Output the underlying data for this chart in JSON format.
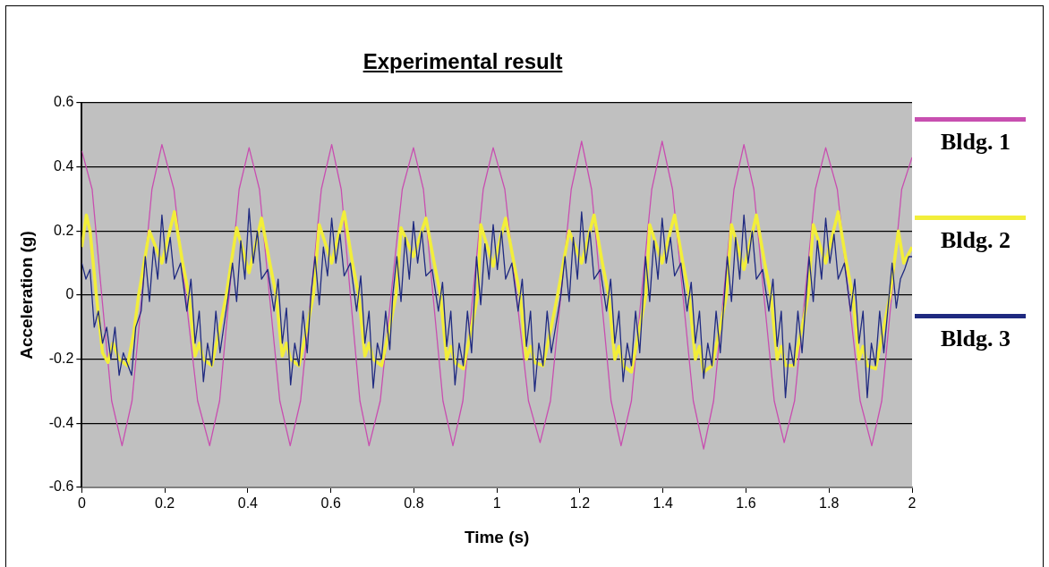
{
  "chart_data": {
    "type": "line",
    "title": "Experimental result",
    "xlabel": "Time (s)",
    "ylabel": "Acceleration (g)",
    "xlim": [
      0,
      2
    ],
    "xticks": [
      0,
      0.2,
      0.4,
      0.6,
      0.8,
      1,
      1.2,
      1.4,
      1.6,
      1.8,
      2
    ],
    "ylim": [
      -0.6,
      0.6
    ],
    "yticks": [
      -0.6,
      -0.4,
      -0.2,
      0,
      0.2,
      0.4,
      0.6
    ],
    "grid": "y",
    "legend": "right",
    "marker": "none",
    "series": [
      {
        "name": "Bldg. 1",
        "color": "#c84fb0",
        "x": [
          0,
          0.025,
          0.048,
          0.072,
          0.097,
          0.121,
          0.145,
          0.169,
          0.193,
          0.222,
          0.25,
          0.279,
          0.308,
          0.332,
          0.355,
          0.379,
          0.403,
          0.428,
          0.452,
          0.477,
          0.502,
          0.527,
          0.552,
          0.577,
          0.602,
          0.625,
          0.647,
          0.67,
          0.692,
          0.719,
          0.745,
          0.772,
          0.799,
          0.823,
          0.846,
          0.87,
          0.894,
          0.918,
          0.942,
          0.967,
          0.991,
          1.019,
          1.047,
          1.076,
          1.104,
          1.129,
          1.154,
          1.179,
          1.204,
          1.228,
          1.251,
          1.275,
          1.299,
          1.324,
          1.348,
          1.373,
          1.398,
          1.423,
          1.448,
          1.473,
          1.498,
          1.522,
          1.546,
          1.571,
          1.595,
          1.619,
          1.643,
          1.668,
          1.692,
          1.717,
          1.742,
          1.767,
          1.792,
          1.82,
          1.847,
          1.875,
          1.903,
          1.927,
          1.951,
          1.975,
          2
        ],
        "values": [
          0.45,
          0.33,
          0,
          -0.33,
          -0.47,
          -0.33,
          0,
          0.33,
          0.47,
          0.33,
          0,
          -0.33,
          -0.47,
          -0.33,
          0,
          0.33,
          0.46,
          0.33,
          0,
          -0.33,
          -0.47,
          -0.33,
          0,
          0.33,
          0.47,
          0.33,
          0,
          -0.33,
          -0.47,
          -0.33,
          0,
          0.33,
          0.46,
          0.33,
          0,
          -0.33,
          -0.47,
          -0.33,
          0,
          0.33,
          0.46,
          0.33,
          0,
          -0.33,
          -0.46,
          -0.33,
          0,
          0.33,
          0.48,
          0.33,
          0,
          -0.33,
          -0.47,
          -0.33,
          0,
          0.33,
          0.48,
          0.33,
          0,
          -0.33,
          -0.48,
          -0.33,
          0,
          0.33,
          0.47,
          0.33,
          0,
          -0.33,
          -0.46,
          -0.33,
          0,
          0.33,
          0.46,
          0.33,
          0,
          -0.33,
          -0.47,
          -0.33,
          0,
          0.33,
          0.43
        ]
      },
      {
        "name": "Bldg. 2",
        "color": "#f2ee3a",
        "x": [
          0,
          0.011,
          0.02,
          0.035,
          0.05,
          0.063,
          0.075,
          0.09,
          0.11,
          0.125,
          0.137,
          0.163,
          0.193,
          0.223,
          0.243,
          0.258,
          0.273,
          0.283,
          0.293,
          0.313,
          0.333,
          0.348,
          0.373,
          0.403,
          0.433,
          0.453,
          0.468,
          0.483,
          0.493,
          0.503,
          0.523,
          0.543,
          0.558,
          0.572,
          0.602,
          0.632,
          0.652,
          0.667,
          0.682,
          0.692,
          0.702,
          0.722,
          0.742,
          0.757,
          0.769,
          0.799,
          0.829,
          0.849,
          0.864,
          0.879,
          0.889,
          0.899,
          0.919,
          0.939,
          0.954,
          0.961,
          0.991,
          1.021,
          1.041,
          1.056,
          1.071,
          1.081,
          1.091,
          1.111,
          1.131,
          1.146,
          1.174,
          1.204,
          1.234,
          1.254,
          1.269,
          1.284,
          1.294,
          1.304,
          1.324,
          1.344,
          1.359,
          1.368,
          1.398,
          1.428,
          1.448,
          1.463,
          1.478,
          1.488,
          1.498,
          1.518,
          1.538,
          1.553,
          1.565,
          1.595,
          1.625,
          1.645,
          1.66,
          1.675,
          1.685,
          1.695,
          1.715,
          1.735,
          1.75,
          1.762,
          1.792,
          1.822,
          1.842,
          1.857,
          1.872,
          1.882,
          1.892,
          1.912,
          1.932,
          1.947,
          1.967,
          1.98,
          2
        ],
        "values": [
          0.15,
          0.25,
          0.2,
          0,
          -0.18,
          -0.21,
          -0.15,
          -0.2,
          -0.22,
          -0.12,
          0,
          0.2,
          0.1,
          0.26,
          0.1,
          0,
          -0.19,
          -0.15,
          -0.2,
          -0.22,
          -0.1,
          0,
          0.21,
          0.07,
          0.24,
          0.1,
          0,
          -0.19,
          -0.15,
          -0.2,
          -0.22,
          -0.1,
          0,
          0.22,
          0.1,
          0.26,
          0.1,
          0,
          -0.19,
          -0.15,
          -0.2,
          -0.22,
          -0.1,
          0,
          0.21,
          0.12,
          0.24,
          0.1,
          0,
          -0.2,
          -0.16,
          -0.21,
          -0.23,
          -0.1,
          0,
          0.22,
          0.09,
          0.24,
          0.1,
          0,
          -0.2,
          -0.16,
          -0.21,
          -0.22,
          -0.1,
          0,
          0.2,
          0.1,
          0.25,
          0.1,
          0,
          -0.2,
          -0.16,
          -0.22,
          -0.24,
          -0.1,
          0,
          0.22,
          0.1,
          0.25,
          0.1,
          0,
          -0.2,
          -0.16,
          -0.24,
          -0.22,
          -0.1,
          0,
          0.22,
          0.08,
          0.25,
          0.1,
          0,
          -0.2,
          -0.16,
          -0.22,
          -0.22,
          -0.1,
          0,
          0.22,
          0.1,
          0.26,
          0.1,
          0,
          -0.2,
          -0.16,
          -0.22,
          -0.23,
          -0.1,
          0,
          0.2,
          0.1,
          0.15
        ]
      },
      {
        "name": "Bldg. 3",
        "color": "#1f2a80",
        "x": [
          0,
          0.01,
          0.02,
          0.03,
          0.04,
          0.05,
          0.06,
          0.07,
          0.08,
          0.09,
          0.1,
          0.12,
          0.13,
          0.143,
          0.153,
          0.163,
          0.173,
          0.183,
          0.193,
          0.203,
          0.213,
          0.223,
          0.238,
          0.253,
          0.263,
          0.273,
          0.283,
          0.293,
          0.303,
          0.313,
          0.323,
          0.333,
          0.353,
          0.363,
          0.373,
          0.383,
          0.393,
          0.403,
          0.413,
          0.423,
          0.433,
          0.448,
          0.463,
          0.473,
          0.483,
          0.493,
          0.503,
          0.513,
          0.523,
          0.533,
          0.543,
          0.552,
          0.562,
          0.572,
          0.582,
          0.592,
          0.602,
          0.612,
          0.622,
          0.632,
          0.647,
          0.662,
          0.672,
          0.682,
          0.692,
          0.702,
          0.712,
          0.722,
          0.732,
          0.742,
          0.749,
          0.759,
          0.769,
          0.779,
          0.789,
          0.799,
          0.809,
          0.819,
          0.829,
          0.844,
          0.859,
          0.869,
          0.879,
          0.889,
          0.899,
          0.909,
          0.919,
          0.929,
          0.939,
          0.951,
          0.961,
          0.971,
          0.981,
          0.991,
          1.001,
          1.011,
          1.021,
          1.036,
          1.051,
          1.061,
          1.071,
          1.081,
          1.091,
          1.101,
          1.111,
          1.121,
          1.131,
          1.154,
          1.164,
          1.174,
          1.184,
          1.194,
          1.204,
          1.214,
          1.224,
          1.234,
          1.249,
          1.264,
          1.274,
          1.284,
          1.294,
          1.304,
          1.314,
          1.324,
          1.334,
          1.344,
          1.358,
          1.368,
          1.378,
          1.388,
          1.398,
          1.408,
          1.418,
          1.428,
          1.443,
          1.458,
          1.468,
          1.478,
          1.488,
          1.498,
          1.508,
          1.518,
          1.528,
          1.538,
          1.555,
          1.565,
          1.575,
          1.585,
          1.595,
          1.605,
          1.615,
          1.625,
          1.64,
          1.655,
          1.665,
          1.675,
          1.685,
          1.695,
          1.705,
          1.715,
          1.725,
          1.735,
          1.752,
          1.762,
          1.772,
          1.782,
          1.792,
          1.802,
          1.812,
          1.822,
          1.837,
          1.852,
          1.862,
          1.872,
          1.882,
          1.892,
          1.902,
          1.912,
          1.922,
          1.932,
          1.952,
          1.962,
          1.972,
          1.982,
          1.992,
          2
        ],
        "values": [
          0.1,
          0.05,
          0.08,
          -0.1,
          -0.05,
          -0.15,
          -0.1,
          -0.2,
          -0.1,
          -0.25,
          -0.18,
          -0.25,
          -0.1,
          -0.05,
          0.12,
          -0.02,
          0.15,
          0.05,
          0.25,
          0.1,
          0.18,
          0.05,
          0.1,
          -0.05,
          0.05,
          -0.15,
          -0.05,
          -0.27,
          -0.15,
          -0.22,
          -0.05,
          -0.18,
          0,
          0.1,
          -0.02,
          0.17,
          0.05,
          0.27,
          0.1,
          0.2,
          0.05,
          0.08,
          -0.05,
          0.05,
          -0.15,
          -0.04,
          -0.28,
          -0.15,
          -0.22,
          -0.05,
          -0.18,
          0,
          0.12,
          -0.03,
          0.15,
          0.06,
          0.24,
          0.1,
          0.19,
          0.06,
          0.1,
          -0.05,
          0.06,
          -0.15,
          -0.05,
          -0.29,
          -0.15,
          -0.2,
          -0.05,
          -0.17,
          0,
          0.12,
          -0.02,
          0.18,
          0.05,
          0.23,
          0.1,
          0.2,
          0.06,
          0.08,
          -0.05,
          0.04,
          -0.16,
          -0.05,
          -0.28,
          -0.15,
          -0.22,
          -0.05,
          -0.18,
          0.12,
          -0.03,
          0.16,
          0.05,
          0.22,
          0.08,
          0.2,
          0.05,
          0.1,
          -0.05,
          0.05,
          -0.16,
          -0.05,
          -0.3,
          -0.15,
          -0.22,
          -0.05,
          -0.18,
          0,
          0.12,
          -0.02,
          0.18,
          0.05,
          0.26,
          0.1,
          0.2,
          0.05,
          0.08,
          -0.05,
          0.05,
          -0.15,
          -0.05,
          -0.27,
          -0.15,
          -0.22,
          -0.05,
          -0.18,
          0.12,
          -0.02,
          0.17,
          0.05,
          0.24,
          0.1,
          0.18,
          0.06,
          0.1,
          -0.05,
          0.04,
          -0.15,
          -0.05,
          -0.26,
          -0.15,
          -0.22,
          -0.05,
          -0.18,
          0.12,
          -0.02,
          0.18,
          0.05,
          0.25,
          0.1,
          0.2,
          0.05,
          0.08,
          -0.05,
          0.05,
          -0.16,
          -0.05,
          -0.32,
          -0.15,
          -0.22,
          -0.05,
          -0.18,
          0.12,
          -0.02,
          0.17,
          0.05,
          0.24,
          0.1,
          0.19,
          0.05,
          0.1,
          -0.05,
          0.05,
          -0.15,
          -0.05,
          -0.32,
          -0.15,
          -0.22,
          -0.05,
          -0.18,
          0.1,
          -0.04,
          0.05,
          0.08,
          0.12,
          0.12
        ]
      }
    ]
  }
}
